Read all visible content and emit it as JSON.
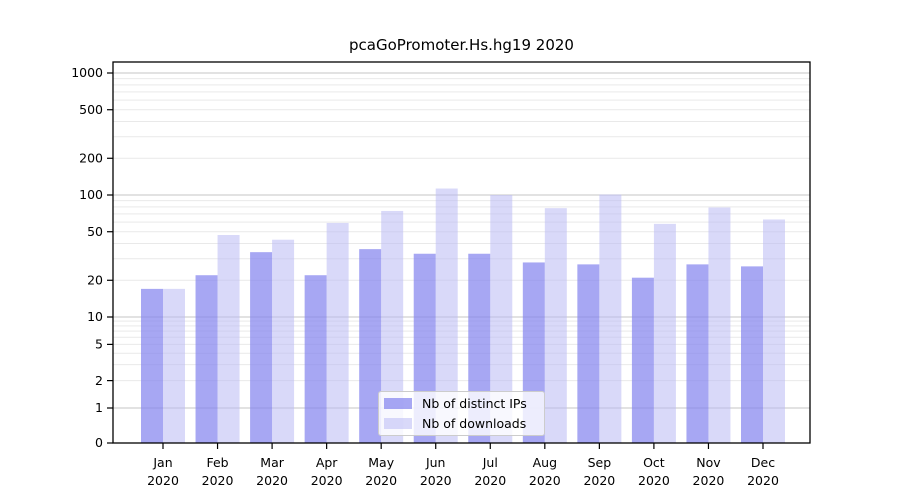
{
  "figure": {
    "title": "pcaGoPromoter.Hs.hg19 2020"
  },
  "chart_data": {
    "type": "bar",
    "title": "pcaGoPromoter.Hs.hg19 2020",
    "categories": [
      "Jan 2020",
      "Feb 2020",
      "Mar 2020",
      "Apr 2020",
      "May 2020",
      "Jun 2020",
      "Jul 2020",
      "Aug 2020",
      "Sep 2020",
      "Oct 2020",
      "Nov 2020",
      "Dec 2020"
    ],
    "series": [
      {
        "name": "Nb of distinct IPs",
        "color": "#8585ef",
        "fill_opacity": 0.72,
        "values": [
          17,
          22,
          34,
          22,
          36,
          33,
          33,
          28,
          27,
          21,
          27,
          26
        ]
      },
      {
        "name": "Nb of downloads",
        "color": "#b9b9f4",
        "fill_opacity": 0.55,
        "values": [
          17,
          47,
          43,
          59,
          74,
          113,
          100,
          78,
          101,
          58,
          79,
          63
        ]
      }
    ],
    "xlabel": "",
    "ylabel": "",
    "y_ticks": [
      0,
      1,
      2,
      5,
      10,
      20,
      50,
      100,
      200,
      500,
      1000
    ],
    "ylim": [
      0,
      1000
    ],
    "yscale": "pseudo-log",
    "grid": true,
    "legend_position": "bottom-center"
  },
  "colors": {
    "background": "#ffffff",
    "axis": "#000000",
    "grid_major": "#c6c6c6",
    "grid_minor": "#e9e9e9",
    "tick_label": "#000000",
    "legend_border": "#cccccc"
  }
}
